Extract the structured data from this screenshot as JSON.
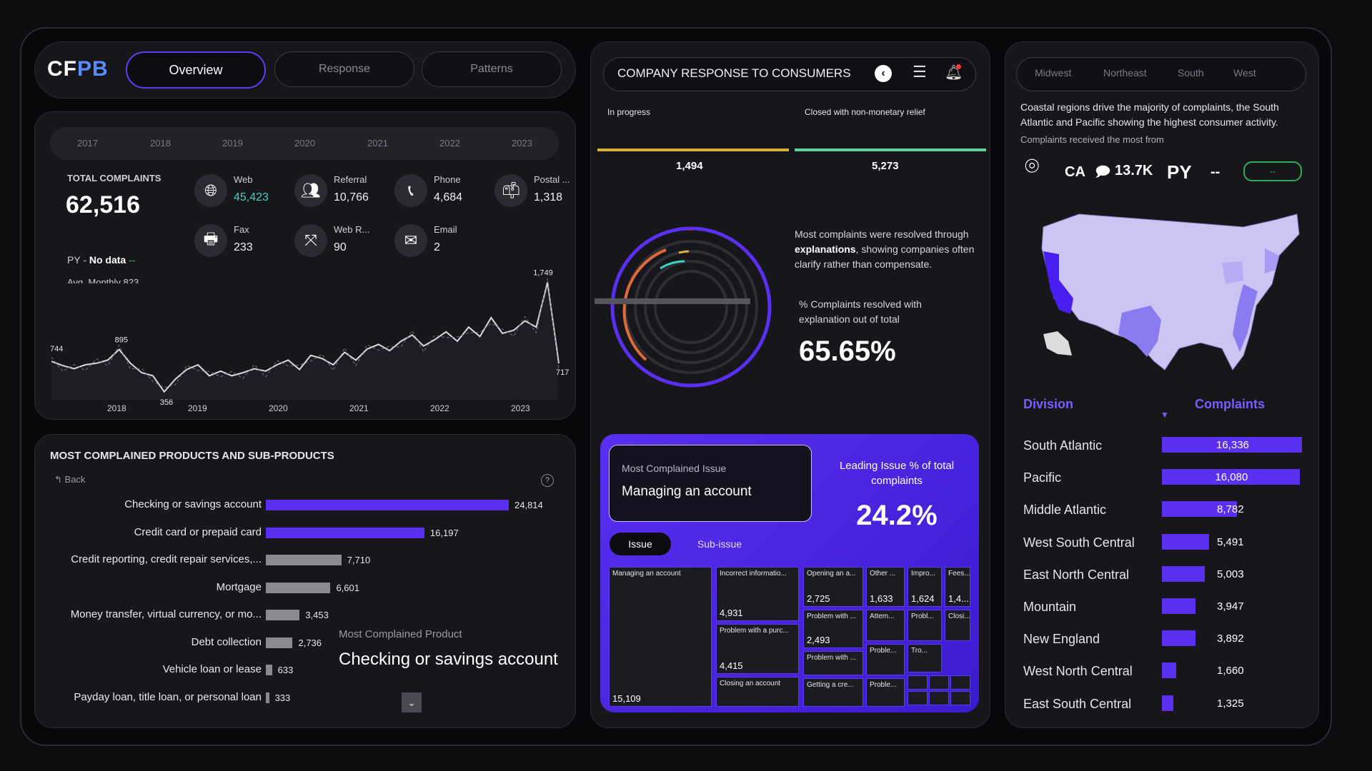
{
  "header": {
    "logo_cf": "CF",
    "logo_pb": "PB",
    "tabs": [
      "Overview",
      "Response",
      "Patterns"
    ]
  },
  "years": [
    "2017",
    "2018",
    "2019",
    "2020",
    "2021",
    "2022",
    "2023"
  ],
  "kpi": {
    "total_label": "TOTAL COMPLAINTS",
    "total_value": "62,516",
    "py_label": "PY -",
    "py_value": "No data",
    "py_dash": "--",
    "avg_monthly": "Avg. Monthly 823"
  },
  "channels": [
    {
      "label": "Web",
      "value": "45,423",
      "icon": "globe-icon"
    },
    {
      "label": "Referral",
      "value": "10,766",
      "icon": "people-icon"
    },
    {
      "label": "Phone",
      "value": "4,684",
      "icon": "phone-icon"
    },
    {
      "label": "Postal ...",
      "value": "1,318",
      "icon": "mailbox-icon"
    },
    {
      "label": "Fax",
      "value": "233",
      "icon": "printer-icon"
    },
    {
      "label": "Web R...",
      "value": "90",
      "icon": "share-icon"
    },
    {
      "label": "Email",
      "value": "2",
      "icon": "envelope-icon"
    }
  ],
  "chart_data": {
    "type": "line",
    "x_ticks": [
      "2018",
      "2019",
      "2020",
      "2021",
      "2022",
      "2023"
    ],
    "series": [
      {
        "values": [
          744,
          690,
          650,
          700,
          720,
          760,
          895,
          720,
          600,
          560,
          356,
          520,
          640,
          700,
          560,
          620,
          560,
          600,
          650,
          620,
          700,
          760,
          640,
          820,
          780,
          700,
          860,
          760,
          900,
          960,
          880,
          1000,
          1080,
          940,
          1020,
          1120,
          1000,
          1180,
          1060,
          1300,
          1100,
          1140,
          1260,
          1180,
          1749,
          717
        ]
      }
    ],
    "annotations": [
      "744",
      "895",
      "356",
      "1,749",
      "717"
    ]
  },
  "products": {
    "title": "MOST COMPLAINED PRODUCTS AND SUB-PRODUCTS",
    "back": "Back",
    "help": "?",
    "items": [
      {
        "name": "Checking or savings account",
        "value": 24814,
        "label": "24,814",
        "color": "#5b2ff0"
      },
      {
        "name": "Credit card or prepaid card",
        "value": 16197,
        "label": "16,197",
        "color": "#5b2ff0"
      },
      {
        "name": "Credit reporting, credit repair services,...",
        "value": 7710,
        "label": "7,710",
        "color": "#8a8a90"
      },
      {
        "name": "Mortgage",
        "value": 6601,
        "label": "6,601",
        "color": "#8a8a90"
      },
      {
        "name": "Money transfer, virtual currency, or mo...",
        "value": 3453,
        "label": "3,453",
        "color": "#8a8a90"
      },
      {
        "name": "Debt collection",
        "value": 2736,
        "label": "2,736",
        "color": "#8a8a90"
      },
      {
        "name": "Vehicle loan or lease",
        "value": 633,
        "label": "633",
        "color": "#8a8a90"
      },
      {
        "name": "Payday loan, title loan, or personal loan",
        "value": 333,
        "label": "333",
        "color": "#8a8a90"
      }
    ],
    "most_label": "Most Complained Product",
    "most_value": "Checking or savings account"
  },
  "response": {
    "title": "COMPANY RESPONSE TO CONSUMERS",
    "left_label": "In progress",
    "left_value": "1,494",
    "right_label": "Closed with non-monetary relief",
    "right_value": "5,273",
    "text_pre": "Most complaints were resolved through ",
    "text_bold": "explanations",
    "text_post": ", showing companies often clarify rather than compensate.",
    "pct_label": "% Complaints resolved with explanation out of total",
    "pct_value": "65.65%",
    "dash": "--"
  },
  "issue": {
    "most_label": "Most Complained Issue",
    "most_value": "Managing an account",
    "lead_label": "Leading Issue % of total complaints",
    "lead_value": "24.2%",
    "tab_issue": "Issue",
    "tab_sub": "Sub-issue",
    "tiles": [
      {
        "label": "Managing an account",
        "value": "15,109"
      },
      {
        "label": "Incorrect informatio...",
        "value": "4,931"
      },
      {
        "label": "Problem with a purc...",
        "value": "4,415"
      },
      {
        "label": "Closing an account",
        "value": ""
      },
      {
        "label": "Opening an a...",
        "value": "2,725"
      },
      {
        "label": "Problem with ...",
        "value": "2,493"
      },
      {
        "label": "Problem with ...",
        "value": ""
      },
      {
        "label": "Getting a cre...",
        "value": ""
      },
      {
        "label": "Other ...",
        "value": "1,633"
      },
      {
        "label": "Impro...",
        "value": "1,624"
      },
      {
        "label": "Fees...",
        "value": "1,4..."
      },
      {
        "label": "Attem...",
        "value": ""
      },
      {
        "label": "Probl...",
        "value": ""
      },
      {
        "label": "Closi...",
        "value": ""
      },
      {
        "label": "Proble...",
        "value": ""
      },
      {
        "label": "Tro...",
        "value": ""
      },
      {
        "label": "Proble...",
        "value": ""
      }
    ]
  },
  "regions": {
    "tabs": [
      "Midwest",
      "Northeast",
      "South",
      "West"
    ],
    "insight": "Coastal regions drive the majority of complaints, the South Atlantic and Pacific showing the highest consumer activity.",
    "most_from": "Complaints received the most from",
    "state": "CA",
    "state_value": "13.7K",
    "py": "PY",
    "py_value": "--",
    "badge": "--",
    "col_division": "Division",
    "col_complaints": "Complaints",
    "divisions": [
      {
        "name": "South Atlantic",
        "value": 16336,
        "label": "16,336"
      },
      {
        "name": "Pacific",
        "value": 16080,
        "label": "16,080"
      },
      {
        "name": "Middle Atlantic",
        "value": 8782,
        "label": "8,782"
      },
      {
        "name": "West South Central",
        "value": 5491,
        "label": "5,491"
      },
      {
        "name": "East North Central",
        "value": 5003,
        "label": "5,003"
      },
      {
        "name": "Mountain",
        "value": 3947,
        "label": "3,947"
      },
      {
        "name": "New England",
        "value": 3892,
        "label": "3,892"
      },
      {
        "name": "West North Central",
        "value": 1660,
        "label": "1,660"
      },
      {
        "name": "East South Central",
        "value": 1325,
        "label": "1,325"
      }
    ]
  },
  "colors": {
    "accent": "#5b2ff0",
    "yellow": "#d6b23a",
    "green": "#5fd19a",
    "teal": "#3ed4c4"
  }
}
